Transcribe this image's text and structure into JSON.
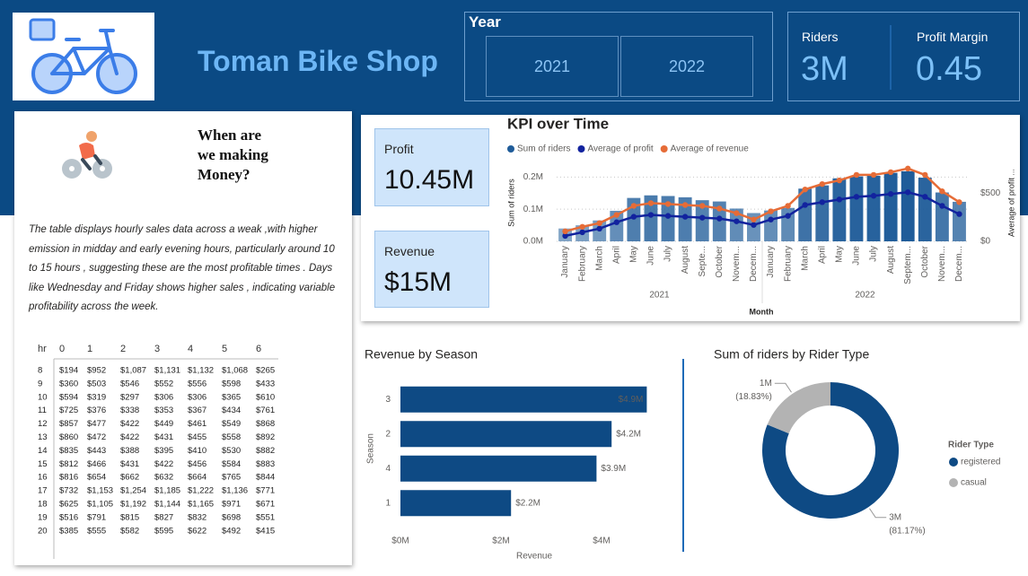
{
  "header": {
    "title": "Toman Bike Shop"
  },
  "year_slicer": {
    "label": "Year",
    "options": [
      "2021",
      "2022"
    ]
  },
  "kpis": {
    "riders": {
      "label": "Riders",
      "value": "3M"
    },
    "profit_margin": {
      "label": "Profit Margin",
      "value": "0.45"
    },
    "profit": {
      "label": "Profit",
      "value": "10.45M"
    },
    "revenue": {
      "label": "Revenue",
      "value": "$15M"
    }
  },
  "insight": {
    "heading": "When are we making Money?",
    "text": "The table displays hourly sales data across a weak ,with higher emission in midday and early evening hours, particularly around 10 to 15 hours , suggesting these are the most profitable times . Days like Wednesday and Friday shows higher sales , indicating variable profitability across the week.",
    "table": {
      "header": [
        "hr",
        "0",
        "1",
        "2",
        "3",
        "4",
        "5",
        "6"
      ],
      "rows": [
        [
          "8",
          "$194",
          "$952",
          "$1,087",
          "$1,131",
          "$1,132",
          "$1,068",
          "$265"
        ],
        [
          "9",
          "$360",
          "$503",
          "$546",
          "$552",
          "$556",
          "$598",
          "$433"
        ],
        [
          "10",
          "$594",
          "$319",
          "$297",
          "$306",
          "$306",
          "$365",
          "$610"
        ],
        [
          "11",
          "$725",
          "$376",
          "$338",
          "$353",
          "$367",
          "$434",
          "$761"
        ],
        [
          "12",
          "$857",
          "$477",
          "$422",
          "$449",
          "$461",
          "$549",
          "$868"
        ],
        [
          "13",
          "$860",
          "$472",
          "$422",
          "$431",
          "$455",
          "$558",
          "$892"
        ],
        [
          "14",
          "$835",
          "$443",
          "$388",
          "$395",
          "$410",
          "$530",
          "$882"
        ],
        [
          "15",
          "$812",
          "$466",
          "$431",
          "$422",
          "$456",
          "$584",
          "$883"
        ],
        [
          "16",
          "$816",
          "$654",
          "$662",
          "$632",
          "$664",
          "$765",
          "$844"
        ],
        [
          "17",
          "$732",
          "$1,153",
          "$1,254",
          "$1,185",
          "$1,222",
          "$1,136",
          "$771"
        ],
        [
          "18",
          "$625",
          "$1,105",
          "$1,192",
          "$1,144",
          "$1,165",
          "$971",
          "$671"
        ],
        [
          "19",
          "$516",
          "$791",
          "$815",
          "$827",
          "$832",
          "$698",
          "$551"
        ],
        [
          "20",
          "$385",
          "$555",
          "$582",
          "$595",
          "$622",
          "$492",
          "$415"
        ]
      ]
    }
  },
  "chart_data": [
    {
      "type": "combo",
      "title": "KPI over Time",
      "categories": [
        "January",
        "February",
        "March",
        "April",
        "May",
        "June",
        "July",
        "August",
        "Septe...",
        "October",
        "Novem...",
        "Decem...",
        "January",
        "February",
        "March",
        "April",
        "May",
        "June",
        "July",
        "August",
        "Septem...",
        "October",
        "Novem...",
        "Decem..."
      ],
      "x_groups": [
        "2021",
        "2022"
      ],
      "xlabel": "Month",
      "ylabel": "Sum of riders",
      "y2label": "Average of profit ...",
      "series": [
        {
          "name": "Sum of riders",
          "type": "bar",
          "color": "#1f5c99",
          "values": [
            40000,
            50000,
            65000,
            95000,
            135000,
            143000,
            141000,
            137000,
            128000,
            124000,
            102000,
            88000,
            96000,
            104000,
            164000,
            174000,
            196000,
            202000,
            204000,
            213000,
            218000,
            198000,
            152000,
            123000
          ]
        },
        {
          "name": "Average of profit",
          "type": "line",
          "axis": "y2",
          "color": "#12239e",
          "values": [
            57,
            94,
            132,
            198,
            255,
            274,
            264,
            255,
            245,
            236,
            208,
            170,
            226,
            264,
            377,
            406,
            434,
            462,
            472,
            491,
            509,
            462,
            368,
            283
          ]
        },
        {
          "name": "Average of revenue",
          "type": "line",
          "axis": "y2",
          "color": "#e66c37",
          "values": [
            104,
            151,
            189,
            274,
            368,
            396,
            387,
            377,
            368,
            340,
            292,
            226,
            311,
            368,
            538,
            594,
            632,
            689,
            689,
            717,
            755,
            689,
            519,
            406
          ]
        }
      ],
      "ylim": [
        0,
        240000
      ],
      "yticks": [
        {
          "value": 0,
          "label": "0.0M"
        },
        {
          "value": 100000,
          "label": "0.1M"
        },
        {
          "value": 200000,
          "label": "0.2M"
        }
      ],
      "y2lim": [
        0,
        800
      ],
      "y2ticks": [
        {
          "value": 0,
          "label": "$0"
        },
        {
          "value": 500,
          "label": "$500"
        }
      ],
      "grid": true,
      "legend": "top"
    },
    {
      "type": "bar",
      "orientation": "horizontal",
      "title": "Revenue by Season",
      "categories": [
        "3",
        "2",
        "4",
        "1"
      ],
      "values": [
        4900000,
        4200000,
        3900000,
        2200000
      ],
      "value_labels": [
        "$4.9M",
        "$4.2M",
        "$3.9M",
        "$2.2M"
      ],
      "color": "#0e4a84",
      "xlabel": "Revenue",
      "ylabel": "Season",
      "xlim": [
        0,
        5000000
      ],
      "xticks": [
        {
          "value": 0,
          "label": "$0M"
        },
        {
          "value": 2000000,
          "label": "$2M"
        },
        {
          "value": 4000000,
          "label": "$4M"
        }
      ]
    },
    {
      "type": "pie",
      "donut": true,
      "title": "Sum of riders by Rider Type",
      "legend_title": "Rider Type",
      "legend": "right",
      "categories": [
        "registered",
        "casual"
      ],
      "values": [
        81.17,
        18.83
      ],
      "value_labels": [
        "(81.17%)",
        "(18.83%)"
      ],
      "rider_labels": [
        "3M",
        "1M"
      ],
      "colors": [
        "#0e4a84",
        "#b3b3b3"
      ]
    }
  ]
}
